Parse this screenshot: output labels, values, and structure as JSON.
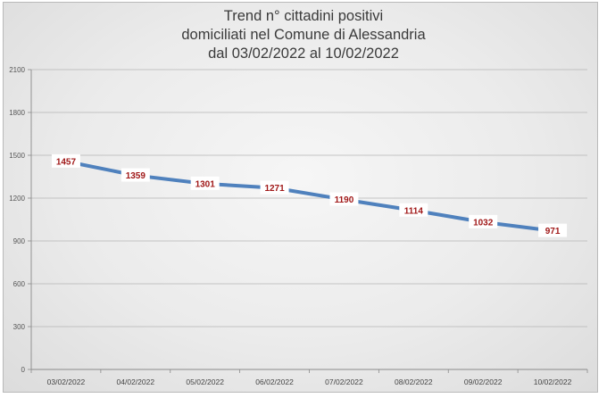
{
  "chart_data": {
    "type": "line",
    "title_lines": [
      "Trend n° cittadini positivi",
      "domiciliati nel Comune di Alessandria",
      "dal 03/02/2022 al 10/02/2022"
    ],
    "categories": [
      "03/02/2022",
      "04/02/2022",
      "05/02/2022",
      "06/02/2022",
      "07/02/2022",
      "08/02/2022",
      "09/02/2022",
      "10/02/2022"
    ],
    "series": [
      {
        "values": [
          1457,
          1359,
          1301,
          1271,
          1190,
          1114,
          1032,
          971
        ],
        "color": "#4f81bd"
      }
    ],
    "ylim": [
      0,
      2100
    ],
    "yticks": [
      0,
      300,
      600,
      900,
      1200,
      1500,
      1800,
      2100
    ],
    "grid": true,
    "data_labels": true,
    "label_color": "#a01818"
  }
}
